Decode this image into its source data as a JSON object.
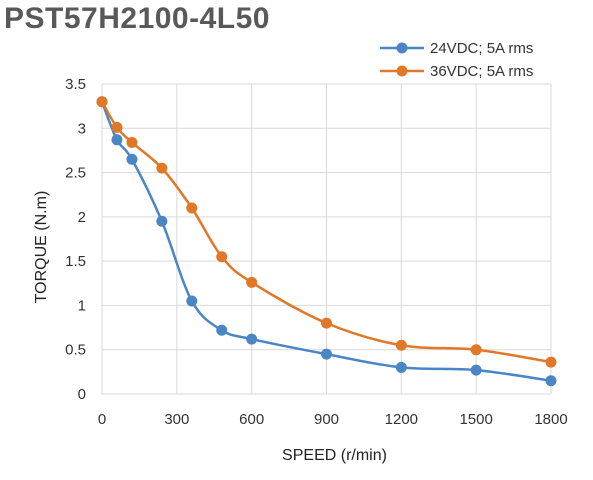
{
  "chart_data": {
    "type": "line",
    "title": "PST57H2100-4L50",
    "xlabel": "SPEED (r/min)",
    "ylabel": "TORQUE (N.m)",
    "xlim": [
      0,
      1800
    ],
    "ylim": [
      0,
      3.5
    ],
    "x_ticks": [
      "0",
      "300",
      "600",
      "900",
      "1200",
      "1500",
      "1800"
    ],
    "y_ticks": [
      "0",
      "0.5",
      "1",
      "1.5",
      "2",
      "2.5",
      "3",
      "3.5"
    ],
    "grid": true,
    "legend_position": "top-right",
    "series": [
      {
        "name": "24VDC; 5A rms",
        "color": "#4a86c5",
        "x": [
          0,
          60,
          120,
          240,
          360,
          480,
          600,
          900,
          1200,
          1500,
          1800
        ],
        "y": [
          3.3,
          2.87,
          2.65,
          1.95,
          1.05,
          0.72,
          0.62,
          0.45,
          0.3,
          0.27,
          0.15
        ]
      },
      {
        "name": "36VDC; 5A rms",
        "color": "#e07828",
        "x": [
          0,
          60,
          120,
          240,
          360,
          480,
          600,
          900,
          1200,
          1500,
          1800
        ],
        "y": [
          3.3,
          3.01,
          2.84,
          2.55,
          2.1,
          1.55,
          1.26,
          0.8,
          0.55,
          0.5,
          0.36
        ]
      }
    ]
  }
}
